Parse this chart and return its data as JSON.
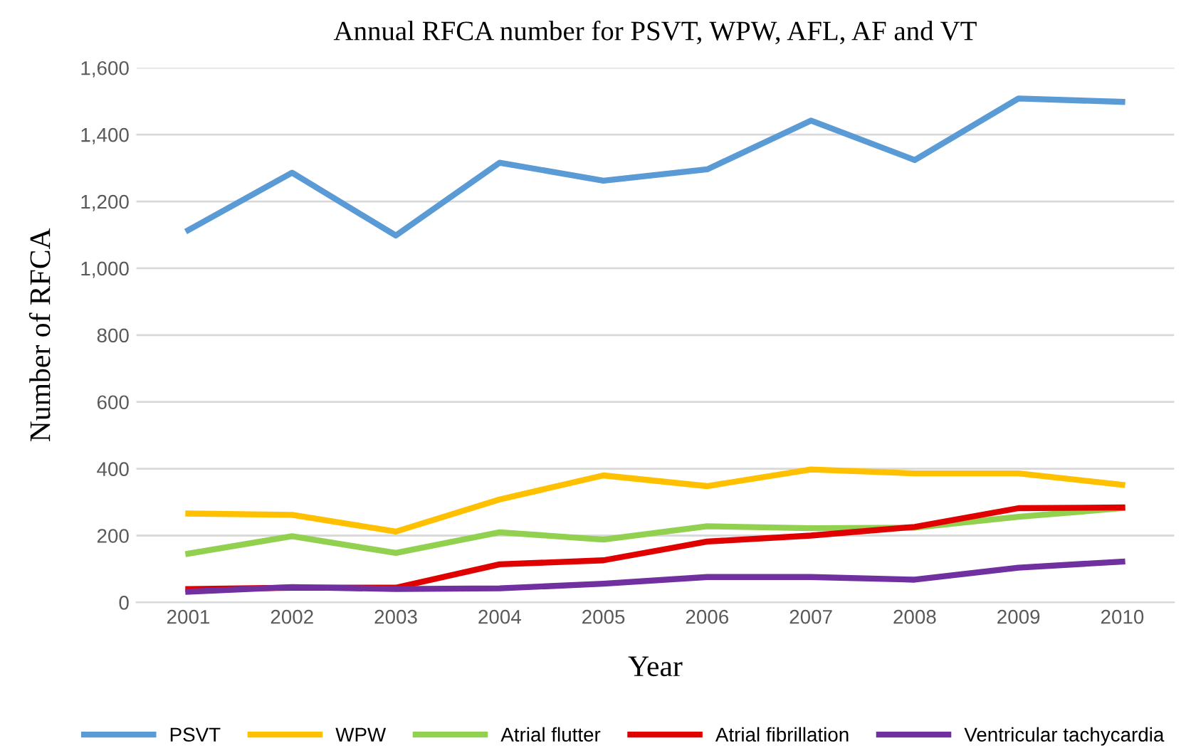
{
  "chart_data": {
    "type": "line",
    "title": "Annual RFCA number for PSVT, WPW, AFL, AF and VT",
    "xlabel": "Year",
    "ylabel": "Number of RFCA",
    "categories": [
      "2001",
      "2002",
      "2003",
      "2004",
      "2005",
      "2006",
      "2007",
      "2008",
      "2009",
      "2010"
    ],
    "series": [
      {
        "name": "PSVT",
        "color": "#5b9bd5",
        "values": [
          1114,
          1286,
          1098,
          1316,
          1262,
          1296,
          1442,
          1324,
          1508,
          1498
        ]
      },
      {
        "name": "WPW",
        "color": "#ffc000",
        "values": [
          266,
          262,
          212,
          308,
          380,
          348,
          398,
          386,
          386,
          352
        ]
      },
      {
        "name": "Atrial flutter",
        "color": "#92d050",
        "values": [
          146,
          198,
          148,
          210,
          188,
          228,
          222,
          224,
          256,
          282
        ]
      },
      {
        "name": "Atrial fibrillation",
        "color": "#e00000",
        "values": [
          40,
          44,
          44,
          114,
          126,
          182,
          200,
          226,
          282,
          284
        ]
      },
      {
        "name": "Ventricular tachycardia",
        "color": "#7030a0",
        "values": [
          32,
          46,
          40,
          42,
          56,
          76,
          76,
          68,
          104,
          122
        ]
      }
    ],
    "ylim": [
      0,
      1600
    ],
    "yticks": [
      {
        "value": 0,
        "label": "0"
      },
      {
        "value": 200,
        "label": "200"
      },
      {
        "value": 400,
        "label": "400"
      },
      {
        "value": 600,
        "label": "600"
      },
      {
        "value": 800,
        "label": "800"
      },
      {
        "value": 1000,
        "label": "1,000"
      },
      {
        "value": 1200,
        "label": "1,200"
      },
      {
        "value": 1400,
        "label": "1,400"
      },
      {
        "value": 1600,
        "label": "1,600"
      }
    ],
    "grid": "y",
    "legend": "bottom",
    "marker": "none",
    "line_style": "solid"
  }
}
